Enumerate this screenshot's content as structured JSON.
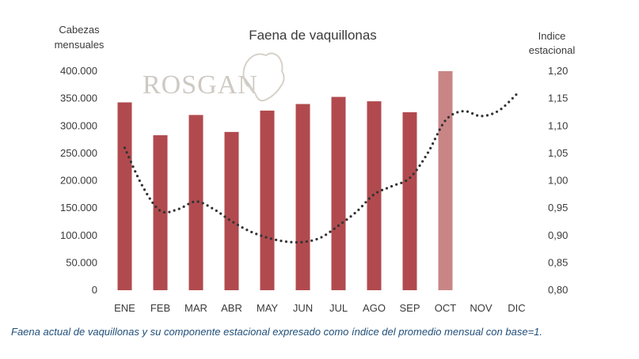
{
  "chart_data": {
    "type": "bar",
    "title": "Faena de vaquillonas",
    "categories": [
      "ENE",
      "FEB",
      "MAR",
      "ABR",
      "MAY",
      "JUN",
      "JUL",
      "AGO",
      "SEP",
      "OCT",
      "NOV",
      "DIC"
    ],
    "series": [
      {
        "type": "bar",
        "axis": "left",
        "values": [
          343000,
          283000,
          320000,
          289000,
          328000,
          340000,
          353000,
          345000,
          325000,
          400000,
          null,
          null
        ],
        "color": "#b14a4e",
        "highlight_color": "#c98586",
        "highlight_index": 9
      },
      {
        "type": "line",
        "style": "dotted",
        "axis": "right",
        "x": [
          0,
          0.5,
          1,
          1.5,
          2,
          2.5,
          3,
          3.5,
          4,
          4.5,
          5,
          5.5,
          6,
          6.5,
          7,
          7.5,
          8,
          8.5,
          9,
          9.5,
          10,
          10.5,
          11
        ],
        "values": [
          1.06,
          0.99,
          0.945,
          0.948,
          0.962,
          0.948,
          0.926,
          0.908,
          0.896,
          0.889,
          0.888,
          0.896,
          0.918,
          0.943,
          0.975,
          0.99,
          1.005,
          1.05,
          1.11,
          1.127,
          1.118,
          1.128,
          1.158
        ],
        "color": "#333333"
      }
    ],
    "ylabel_left": [
      "Cabezas",
      "mensuales"
    ],
    "ylabel_right": [
      "Indice",
      "estacional"
    ],
    "ylim_left": [
      0,
      400000
    ],
    "ylim_right": [
      0.8,
      1.2
    ],
    "yticks_left": [
      "0",
      "50.000",
      "100.000",
      "150.000",
      "200.000",
      "250.000",
      "300.000",
      "350.000",
      "400.000"
    ],
    "yticks_right": [
      "0,80",
      "0,85",
      "0,90",
      "0,95",
      "1,00",
      "1,05",
      "1,10",
      "1,15",
      "1,20"
    ],
    "grid": false,
    "legend": "none"
  },
  "watermark": "ROSGAN",
  "caption": "Faena actual de vaquillonas y su componente estacional expresado como índice del promedio mensual con base=1."
}
